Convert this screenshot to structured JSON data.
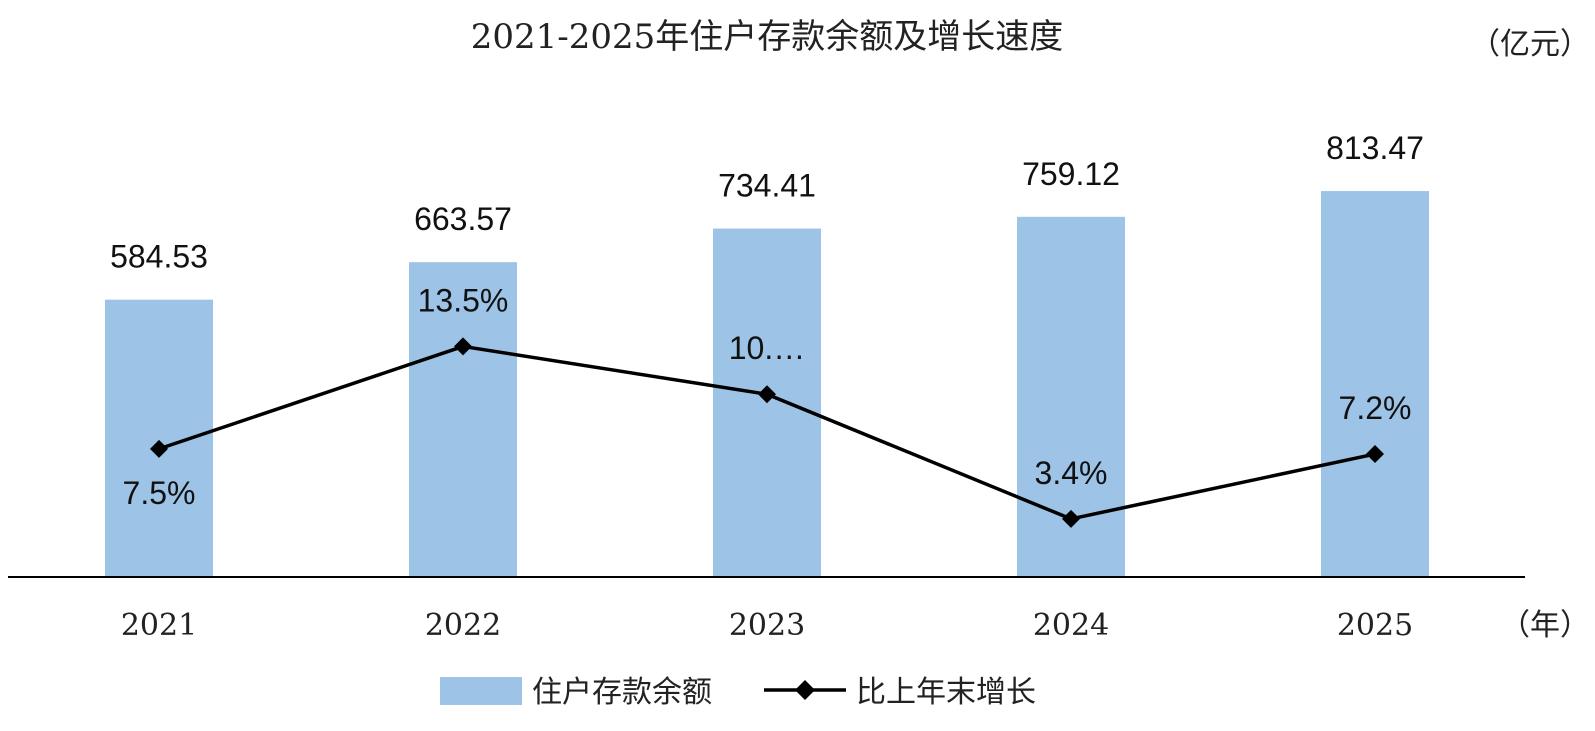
{
  "chart_data": {
    "type": "bar",
    "title": "2021-2025年住户存款余额及增长速度",
    "y_unit_label": "（亿元）",
    "x_unit_label": "（年）",
    "categories": [
      "2021",
      "2022",
      "2023",
      "2024",
      "2025"
    ],
    "series": [
      {
        "name": "住户存款余额",
        "type": "bar",
        "values": [
          584.53,
          663.57,
          734.41,
          759.12,
          813.47
        ],
        "labels": [
          "584.53",
          "663.57",
          "734.41",
          "759.12",
          "813.47"
        ],
        "color": "#9dc3e6"
      },
      {
        "name": "比上年末增长",
        "type": "line",
        "values": [
          7.5,
          13.5,
          10.7,
          3.4,
          7.2
        ],
        "labels": [
          "7.5%",
          "13.5%",
          "10.…",
          "3.4%",
          "7.2%"
        ],
        "label_position": [
          "below",
          "above",
          "above",
          "above",
          "above"
        ],
        "color": "#000000"
      }
    ],
    "bar_ylim": [
      0,
      900
    ],
    "line_ylim": [
      0,
      25
    ],
    "grid": false,
    "legend_position": "bottom"
  }
}
